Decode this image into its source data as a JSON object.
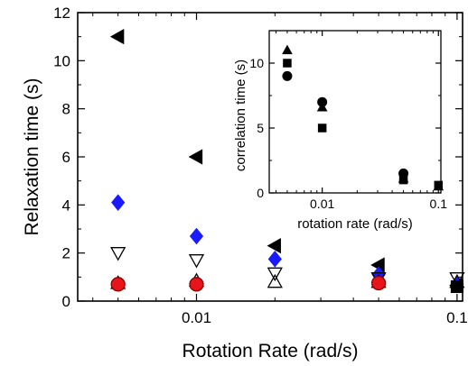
{
  "chart_data": [
    {
      "type": "scatter",
      "xlabel": "Rotation Rate (rad/s)",
      "ylabel": "Relaxation time (s)",
      "xscale": "log",
      "xlim": [
        0.0035,
        0.105
      ],
      "ylim": [
        0,
        12
      ],
      "x_ticks": [
        {
          "value": 0.01,
          "label": "0.01"
        },
        {
          "value": 0.1,
          "label": "0.1"
        }
      ],
      "y_ticks": [
        {
          "value": 0,
          "label": "0"
        },
        {
          "value": 2,
          "label": "2"
        },
        {
          "value": 4,
          "label": "4"
        },
        {
          "value": 6,
          "label": "6"
        },
        {
          "value": 8,
          "label": "8"
        },
        {
          "value": 10,
          "label": "10"
        },
        {
          "value": 12,
          "label": "12"
        }
      ],
      "series": [
        {
          "marker": "triangle-left",
          "fill": "#000000",
          "stroke": "#000000",
          "points": [
            [
              0.005,
              11.0
            ],
            [
              0.01,
              6.0
            ],
            [
              0.02,
              2.3
            ],
            [
              0.05,
              1.5
            ],
            [
              0.1,
              0.65
            ]
          ]
        },
        {
          "marker": "diamond",
          "fill": "#1a1aff",
          "stroke": "#1a1aff",
          "points": [
            [
              0.005,
              4.1
            ],
            [
              0.01,
              2.7
            ],
            [
              0.02,
              1.75
            ],
            [
              0.05,
              1.1
            ],
            [
              0.1,
              0.7
            ]
          ]
        },
        {
          "marker": "triangle-down",
          "fill": "none",
          "stroke": "#000000",
          "points": [
            [
              0.005,
              2.0
            ],
            [
              0.01,
              1.7
            ],
            [
              0.02,
              1.15
            ],
            [
              0.05,
              0.95
            ],
            [
              0.1,
              0.95
            ]
          ]
        },
        {
          "marker": "triangle-up",
          "fill": "none",
          "stroke": "#000000",
          "points": [
            [
              0.005,
              0.75
            ],
            [
              0.01,
              0.85
            ],
            [
              0.02,
              0.8
            ],
            [
              0.05,
              0.8
            ],
            [
              0.1,
              0.8
            ]
          ]
        },
        {
          "marker": "circle",
          "fill": "#e8141c",
          "stroke": "#8b0000",
          "points": [
            [
              0.005,
              0.7
            ],
            [
              0.01,
              0.7
            ],
            [
              0.05,
              0.75
            ]
          ]
        },
        {
          "marker": "square",
          "fill": "#000000",
          "stroke": "#000000",
          "points": [
            [
              0.1,
              0.6
            ]
          ]
        }
      ]
    },
    {
      "type": "scatter",
      "xlabel": "rotation rate (rad/s)",
      "ylabel": "correlation time (s)",
      "xscale": "log",
      "xlim": [
        0.0035,
        0.105
      ],
      "ylim": [
        0,
        12.5
      ],
      "x_ticks": [
        {
          "value": 0.01,
          "label": "0.01"
        },
        {
          "value": 0.1,
          "label": "0.1"
        }
      ],
      "y_ticks": [
        {
          "value": 0,
          "label": "0"
        },
        {
          "value": 5,
          "label": "5"
        },
        {
          "value": 10,
          "label": "10"
        }
      ],
      "series": [
        {
          "marker": "triangle-up",
          "fill": "#000000",
          "stroke": "#000000",
          "points": [
            [
              0.005,
              11.0
            ],
            [
              0.01,
              6.6
            ],
            [
              0.05,
              1.1
            ],
            [
              0.1,
              0.5
            ]
          ]
        },
        {
          "marker": "square",
          "fill": "#000000",
          "stroke": "#000000",
          "points": [
            [
              0.005,
              10.0
            ],
            [
              0.01,
              5.0
            ],
            [
              0.05,
              1.0
            ],
            [
              0.1,
              0.6
            ]
          ]
        },
        {
          "marker": "circle",
          "fill": "#000000",
          "stroke": "#000000",
          "points": [
            [
              0.005,
              9.0
            ],
            [
              0.01,
              7.0
            ],
            [
              0.05,
              1.5
            ]
          ]
        }
      ]
    }
  ]
}
